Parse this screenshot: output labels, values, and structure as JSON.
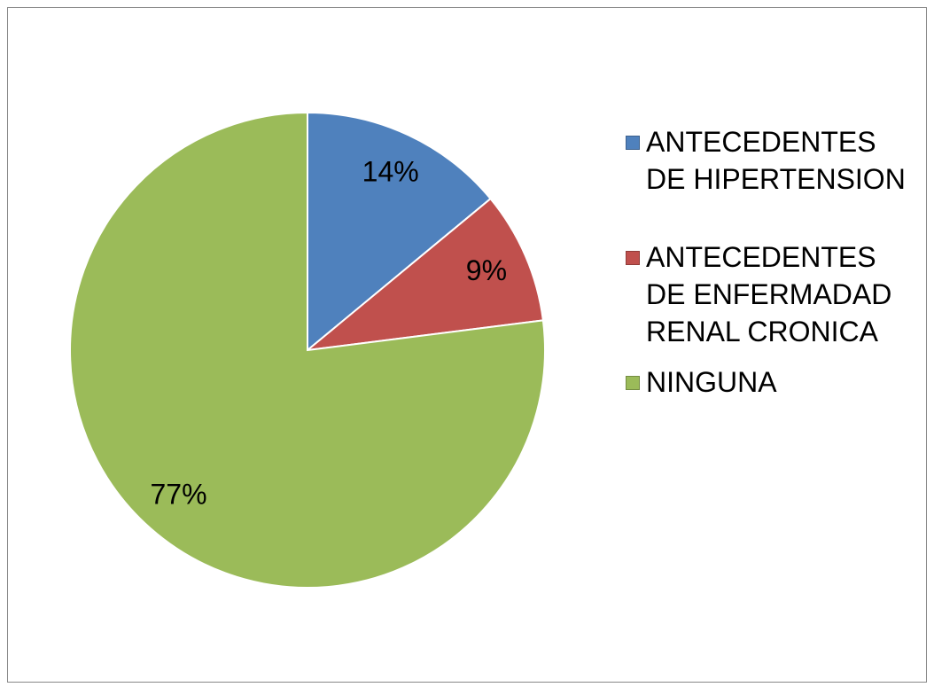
{
  "chart_data": {
    "type": "pie",
    "categories": [
      "ANTECEDENTES DE HIPERTENSION",
      "ANTECEDENTES DE ENFERMADAD RENAL CRONICA",
      "NINGUNA"
    ],
    "values": [
      14,
      9,
      77
    ],
    "value_labels": [
      "14%",
      "9%",
      "77%"
    ],
    "colors": [
      "#4f81bd",
      "#c0504d",
      "#9bbb59"
    ],
    "legend": "right"
  }
}
